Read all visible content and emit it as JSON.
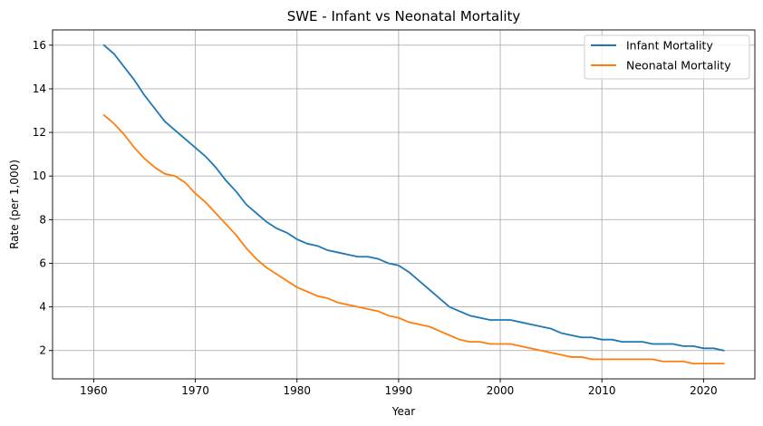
{
  "chart_data": {
    "type": "line",
    "title": "SWE - Infant vs Neonatal Mortality",
    "xlabel": "Year",
    "ylabel": "Rate (per 1,000)",
    "xlim": [
      1955.95,
      2025.05
    ],
    "ylim": [
      0.7,
      16.7
    ],
    "xticks": [
      1960,
      1970,
      1980,
      1990,
      2000,
      2010,
      2020
    ],
    "yticks": [
      2,
      4,
      6,
      8,
      10,
      12,
      14,
      16
    ],
    "grid": true,
    "legend_position": "top-right",
    "x": [
      1961,
      1962,
      1963,
      1964,
      1965,
      1966,
      1967,
      1968,
      1969,
      1970,
      1971,
      1972,
      1973,
      1974,
      1975,
      1976,
      1977,
      1978,
      1979,
      1980,
      1981,
      1982,
      1983,
      1984,
      1985,
      1986,
      1987,
      1988,
      1989,
      1990,
      1991,
      1992,
      1993,
      1994,
      1995,
      1996,
      1997,
      1998,
      1999,
      2000,
      2001,
      2002,
      2003,
      2004,
      2005,
      2006,
      2007,
      2008,
      2009,
      2010,
      2011,
      2012,
      2013,
      2014,
      2015,
      2016,
      2017,
      2018,
      2019,
      2020,
      2021,
      2022
    ],
    "series": [
      {
        "name": "Infant Mortality",
        "color": "#1f77b4",
        "values": [
          16.0,
          15.6,
          15.0,
          14.4,
          13.7,
          13.1,
          12.5,
          12.1,
          11.7,
          11.3,
          10.9,
          10.4,
          9.8,
          9.3,
          8.7,
          8.3,
          7.9,
          7.6,
          7.4,
          7.1,
          6.9,
          6.8,
          6.6,
          6.5,
          6.4,
          6.3,
          6.3,
          6.2,
          6.0,
          5.9,
          5.6,
          5.2,
          4.8,
          4.4,
          4.0,
          3.8,
          3.6,
          3.5,
          3.4,
          3.4,
          3.4,
          3.3,
          3.2,
          3.1,
          3.0,
          2.8,
          2.7,
          2.6,
          2.6,
          2.5,
          2.5,
          2.4,
          2.4,
          2.4,
          2.3,
          2.3,
          2.3,
          2.2,
          2.2,
          2.1,
          2.1,
          2.0
        ]
      },
      {
        "name": "Neonatal Mortality",
        "color": "#ff7f0e",
        "values": [
          12.8,
          12.4,
          11.9,
          11.3,
          10.8,
          10.4,
          10.1,
          10.0,
          9.7,
          9.2,
          8.8,
          8.3,
          7.8,
          7.3,
          6.7,
          6.2,
          5.8,
          5.5,
          5.2,
          4.9,
          4.7,
          4.5,
          4.4,
          4.2,
          4.1,
          4.0,
          3.9,
          3.8,
          3.6,
          3.5,
          3.3,
          3.2,
          3.1,
          2.9,
          2.7,
          2.5,
          2.4,
          2.4,
          2.3,
          2.3,
          2.3,
          2.2,
          2.1,
          2.0,
          1.9,
          1.8,
          1.7,
          1.7,
          1.6,
          1.6,
          1.6,
          1.6,
          1.6,
          1.6,
          1.6,
          1.5,
          1.5,
          1.5,
          1.4,
          1.4,
          1.4,
          1.4
        ]
      }
    ]
  }
}
